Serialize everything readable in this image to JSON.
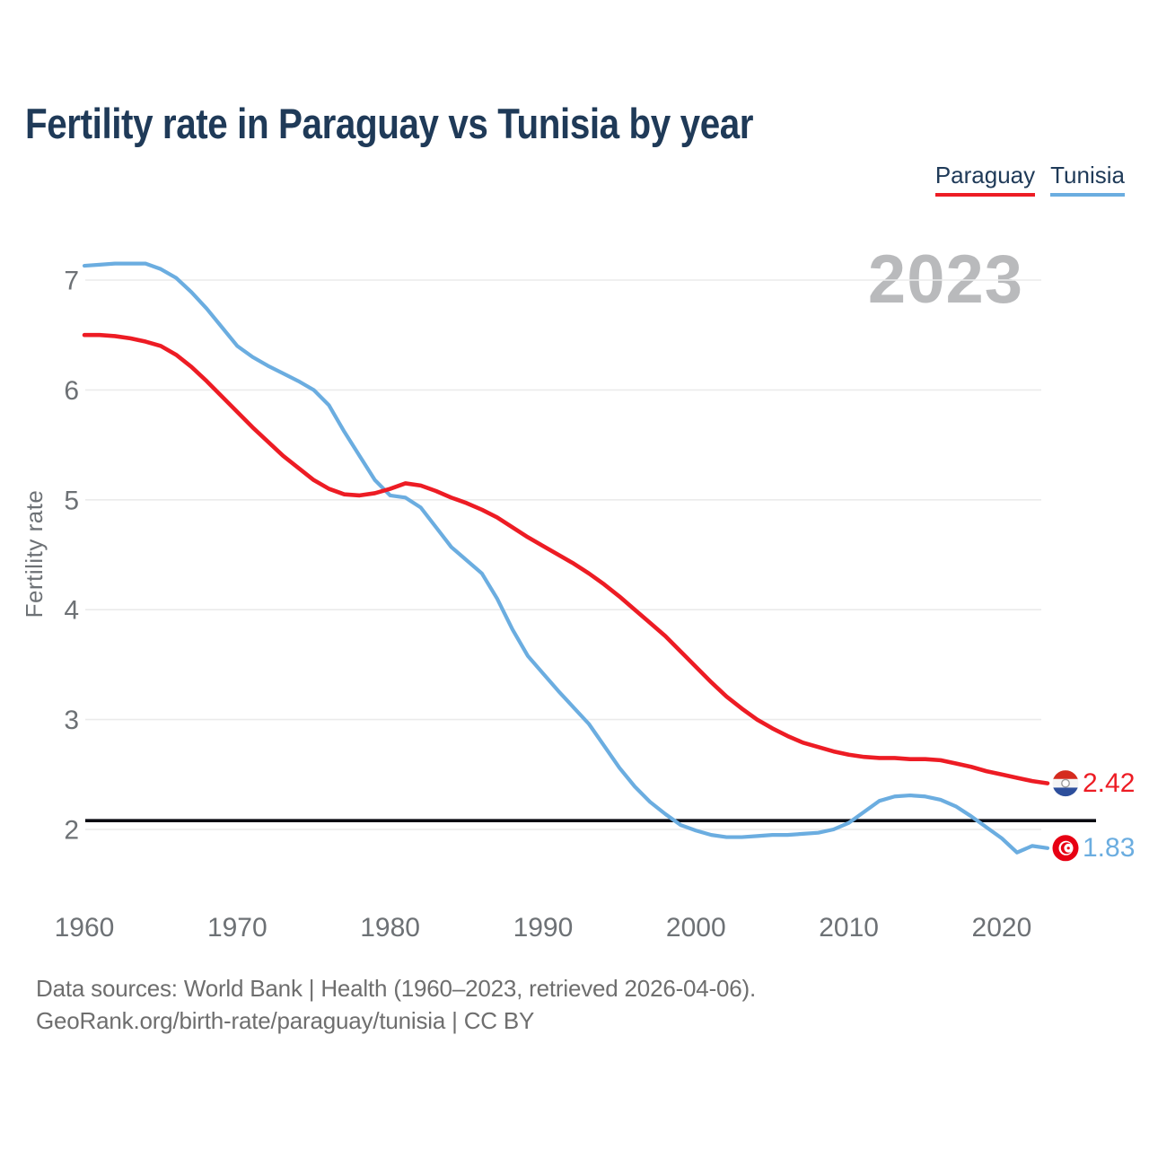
{
  "title": "Fertility rate in Paraguay vs Tunisia by year",
  "legend": {
    "items": [
      {
        "label": "Paraguay",
        "color": "#ed1c24"
      },
      {
        "label": "Tunisia",
        "color": "#6bade0"
      }
    ]
  },
  "year_watermark": "2023",
  "end_labels": [
    {
      "series": "Paraguay",
      "value": "2.42",
      "color": "#ed1c24",
      "flag_icon": "paraguay-flag-icon",
      "flag_colors": [
        "#d52b1e",
        "#f4f4f4",
        "#2d4f9c"
      ],
      "emblem_color": "#9a9a9a"
    },
    {
      "series": "Tunisia",
      "value": "1.83",
      "color": "#6bade0",
      "flag_icon": "tunisia-flag-icon",
      "flag_colors": [
        "#e70013",
        "#ffffff"
      ]
    }
  ],
  "footer": {
    "line1": "Data sources: World Bank | Health (1960–2023, retrieved 2026-04-06).",
    "line2": "GeoRank.org/birth-rate/paraguay/tunisia | CC BY"
  },
  "chart_data": {
    "type": "line",
    "title": "Fertility rate in Paraguay vs Tunisia by year",
    "xlabel": "",
    "ylabel": "Fertility rate",
    "xlim": [
      1960,
      2023
    ],
    "ylim": [
      1.6,
      7.4
    ],
    "x_ticks": [
      1960,
      1970,
      1980,
      1990,
      2000,
      2010,
      2020
    ],
    "y_ticks": [
      2,
      3,
      4,
      5,
      6,
      7
    ],
    "grid": "horizontal",
    "legend_position": "top-right",
    "reference_line": {
      "value": 2.08,
      "color": "#0a0b12"
    },
    "years": [
      1960,
      1961,
      1962,
      1963,
      1964,
      1965,
      1966,
      1967,
      1968,
      1969,
      1970,
      1971,
      1972,
      1973,
      1974,
      1975,
      1976,
      1977,
      1978,
      1979,
      1980,
      1981,
      1982,
      1983,
      1984,
      1985,
      1986,
      1987,
      1988,
      1989,
      1990,
      1991,
      1992,
      1993,
      1994,
      1995,
      1996,
      1997,
      1998,
      1999,
      2000,
      2001,
      2002,
      2003,
      2004,
      2005,
      2006,
      2007,
      2008,
      2009,
      2010,
      2011,
      2012,
      2013,
      2014,
      2015,
      2016,
      2017,
      2018,
      2019,
      2020,
      2021,
      2022,
      2023
    ],
    "series": [
      {
        "name": "Paraguay",
        "color": "#ed1c24",
        "values": [
          6.5,
          6.5,
          6.49,
          6.47,
          6.44,
          6.4,
          6.32,
          6.21,
          6.08,
          5.94,
          5.8,
          5.66,
          5.53,
          5.4,
          5.29,
          5.18,
          5.1,
          5.05,
          5.04,
          5.06,
          5.1,
          5.15,
          5.13,
          5.08,
          5.02,
          4.97,
          4.91,
          4.84,
          4.75,
          4.66,
          4.58,
          4.5,
          4.42,
          4.33,
          4.23,
          4.12,
          4.0,
          3.88,
          3.76,
          3.62,
          3.48,
          3.34,
          3.21,
          3.1,
          3.0,
          2.92,
          2.85,
          2.79,
          2.75,
          2.71,
          2.68,
          2.66,
          2.65,
          2.65,
          2.64,
          2.64,
          2.63,
          2.6,
          2.57,
          2.53,
          2.5,
          2.47,
          2.44,
          2.42
        ]
      },
      {
        "name": "Tunisia",
        "color": "#6bade0",
        "values": [
          7.13,
          7.14,
          7.15,
          7.15,
          7.15,
          7.1,
          7.02,
          6.89,
          6.74,
          6.57,
          6.4,
          6.3,
          6.22,
          6.15,
          6.08,
          6.0,
          5.86,
          5.62,
          5.4,
          5.18,
          5.04,
          5.02,
          4.93,
          4.75,
          4.57,
          4.45,
          4.33,
          4.1,
          3.82,
          3.58,
          3.42,
          3.26,
          3.11,
          2.96,
          2.76,
          2.56,
          2.39,
          2.25,
          2.14,
          2.04,
          1.99,
          1.95,
          1.93,
          1.93,
          1.94,
          1.95,
          1.95,
          1.96,
          1.97,
          2.0,
          2.06,
          2.16,
          2.26,
          2.3,
          2.31,
          2.3,
          2.27,
          2.21,
          2.12,
          2.02,
          1.92,
          1.79,
          1.85,
          1.83
        ]
      }
    ]
  }
}
